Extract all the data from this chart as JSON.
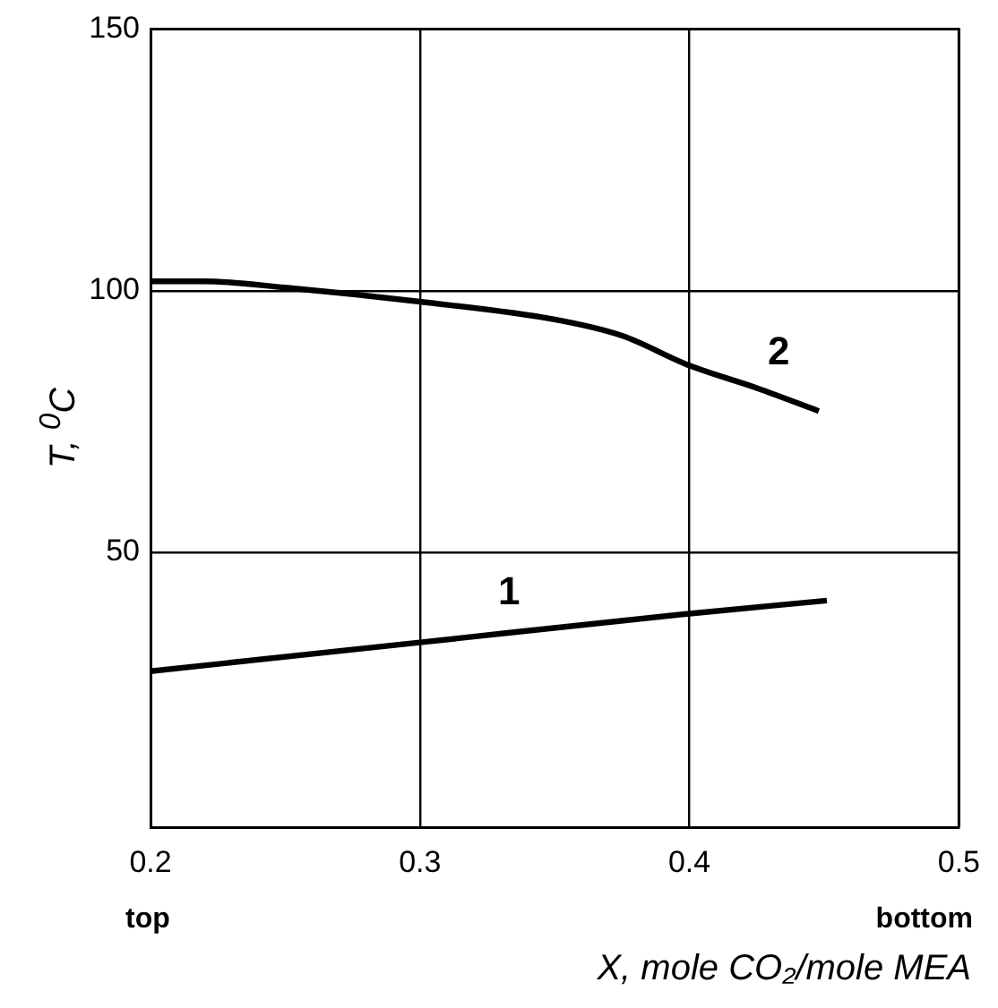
{
  "chart_data": {
    "type": "line",
    "xlabel": "X, mole CO₂/mole MEA",
    "ylabel": "T, $^{0}$C",
    "xlim": [
      0.2,
      0.5
    ],
    "xticks": [
      0.2,
      0.3,
      0.4,
      0.5
    ],
    "ylim": [
      -2.5,
      150
    ],
    "yticks": [
      50,
      100,
      150
    ],
    "grid": true,
    "legend": false,
    "marker": "none",
    "line_style": "solid",
    "series": [
      {
        "name": "1",
        "color": "#000000",
        "x": [
          0.2,
          0.3,
          0.4,
          0.451
        ],
        "values": [
          27.3,
          32.8,
          38.3,
          40.8
        ]
      },
      {
        "name": "2",
        "color": "#000000",
        "x": [
          0.2,
          0.22,
          0.25,
          0.3,
          0.35,
          0.375,
          0.4,
          0.425,
          0.448
        ],
        "values": [
          101.8,
          101.8,
          100.6,
          97.9,
          94.5,
          91.4,
          85.7,
          81.4,
          77
        ]
      }
    ],
    "annotations": [
      "top",
      "bottom"
    ]
  }
}
